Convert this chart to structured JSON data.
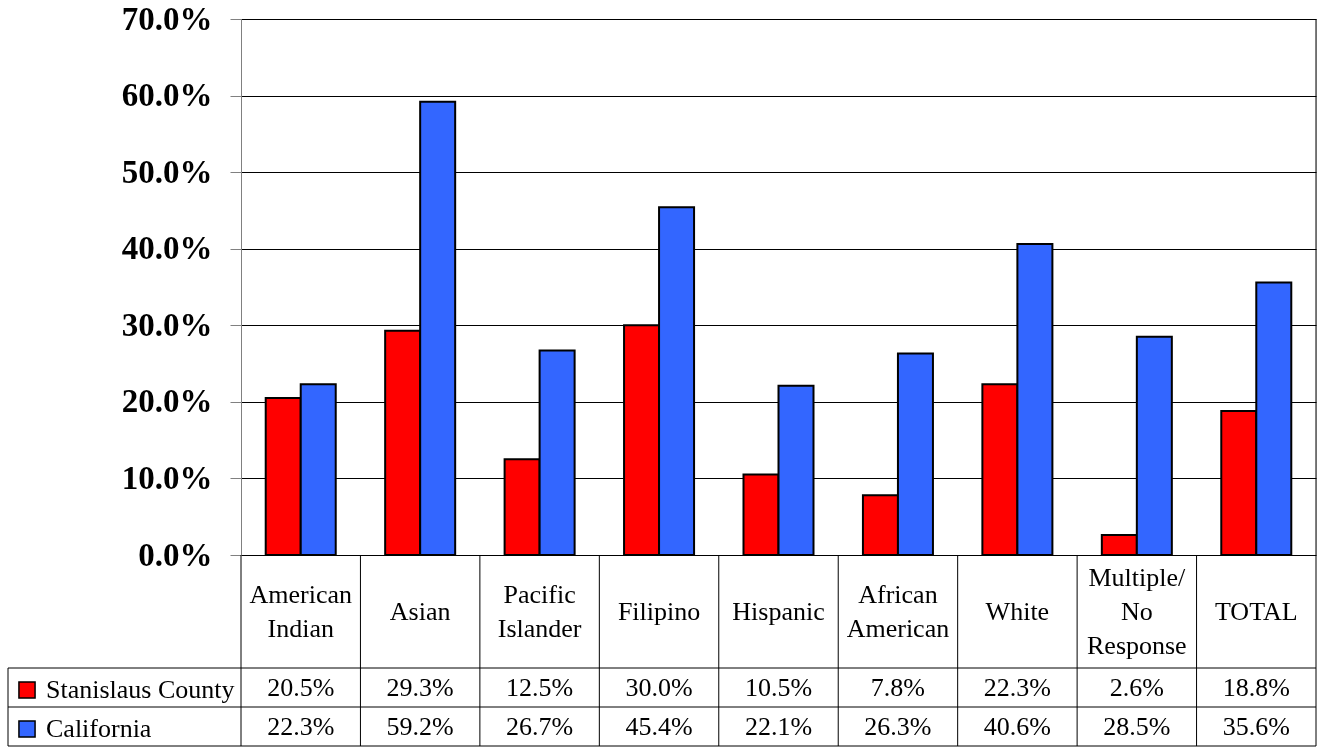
{
  "chart_data": {
    "type": "bar",
    "categories": [
      "American Indian",
      "Asian",
      "Pacific Islander",
      "Filipino",
      "Hispanic",
      "African American",
      "White",
      "Multiple/No Response",
      "TOTAL"
    ],
    "series": [
      {
        "name": "Stanislaus County",
        "color": "#ff0000",
        "values": [
          20.5,
          29.3,
          12.5,
          30.0,
          10.5,
          7.8,
          22.3,
          2.6,
          18.8
        ],
        "value_labels": [
          "20.5%",
          "29.3%",
          "12.5%",
          "30.0%",
          "10.5%",
          "7.8%",
          "22.3%",
          "2.6%",
          "18.8%"
        ]
      },
      {
        "name": "California",
        "color": "#3366ff",
        "values": [
          22.3,
          59.2,
          26.7,
          45.4,
          22.1,
          26.3,
          40.6,
          28.5,
          35.6
        ],
        "value_labels": [
          "22.3%",
          "59.2%",
          "26.7%",
          "45.4%",
          "22.1%",
          "26.3%",
          "40.6%",
          "28.5%",
          "35.6%"
        ]
      }
    ],
    "ylim": [
      0,
      70
    ],
    "yticks": [
      {
        "value": 0,
        "label": "0.0%"
      },
      {
        "value": 10,
        "label": "10.0%"
      },
      {
        "value": 20,
        "label": "20.0%"
      },
      {
        "value": 30,
        "label": "30.0%"
      },
      {
        "value": 40,
        "label": "40.0%"
      },
      {
        "value": 50,
        "label": "50.0%"
      },
      {
        "value": 60,
        "label": "60.0%"
      },
      {
        "value": 70,
        "label": "70.0%"
      }
    ],
    "grid": "y",
    "legend": "bottom left"
  }
}
